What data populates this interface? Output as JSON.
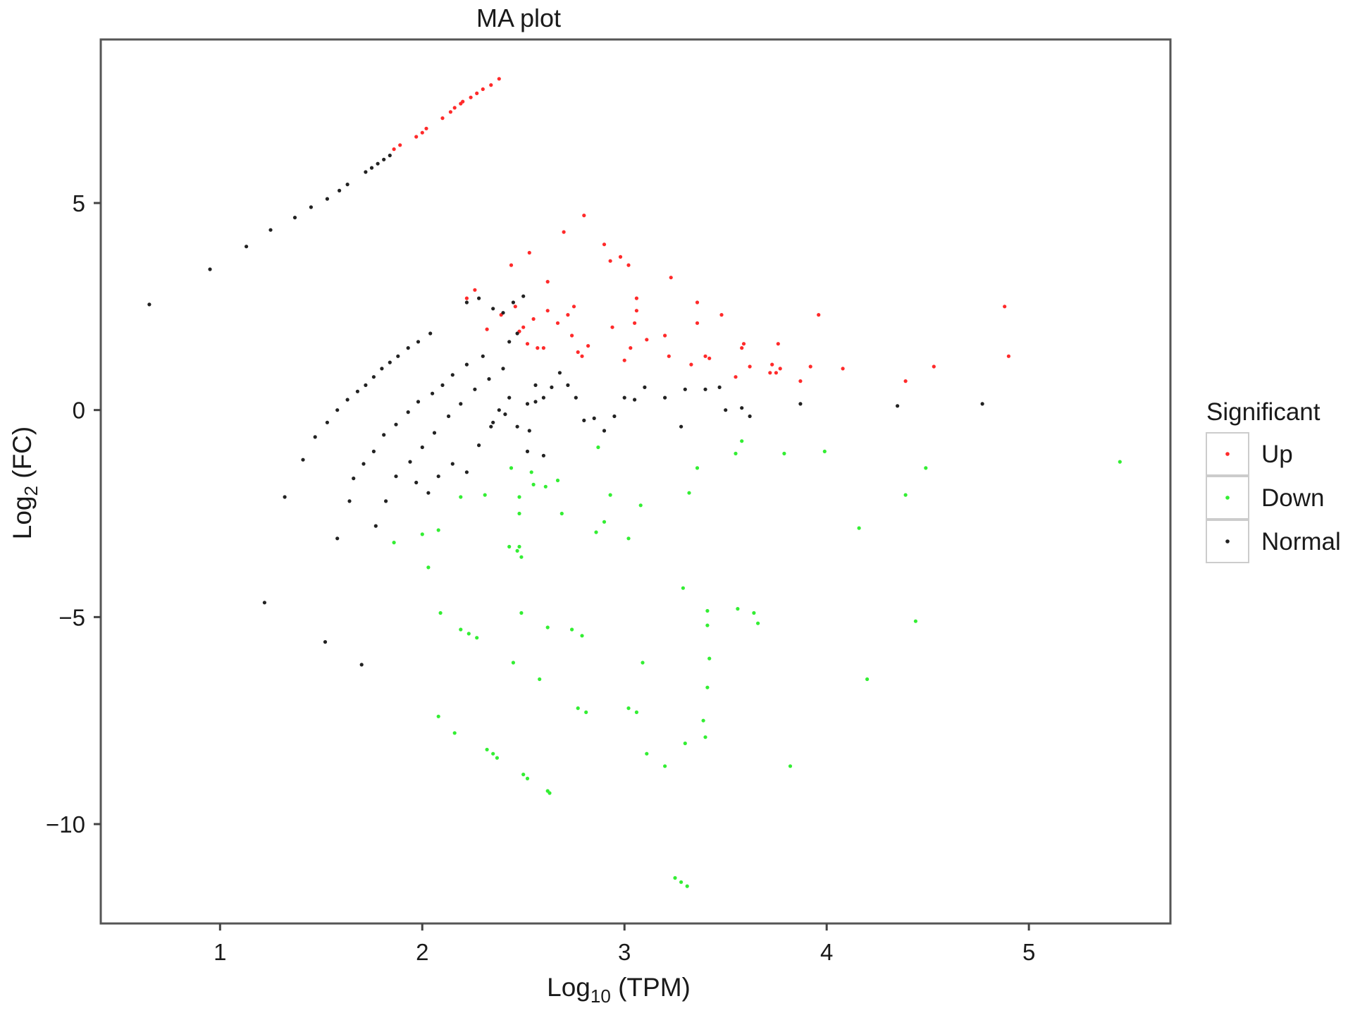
{
  "chart_data": {
    "type": "scatter",
    "title": "MA plot",
    "xlabel": {
      "base": "Log",
      "sub": "10",
      "rest": " (TPM)"
    },
    "ylabel": {
      "base": "Log",
      "sub": "2",
      "rest": " (FC)"
    },
    "xlim": [
      0.41,
      5.7
    ],
    "ylim": [
      -12.4,
      8.95
    ],
    "xticks": [
      1,
      2,
      3,
      4,
      5
    ],
    "yticks": [
      5,
      0,
      -5,
      -10
    ],
    "xtick_labels": [
      "1",
      "2",
      "3",
      "4",
      "5"
    ],
    "ytick_labels": [
      "5",
      "0",
      "−5",
      "−10"
    ],
    "grid": false,
    "legend": {
      "title": "Significant",
      "position": "right",
      "entries": [
        {
          "label": "Up",
          "color": "#ff2a2a"
        },
        {
          "label": "Down",
          "color": "#33ee33"
        },
        {
          "label": "Normal",
          "color": "#222222"
        }
      ]
    },
    "series": [
      {
        "name": "Up",
        "color": "#ff2a2a",
        "points": [
          [
            1.86,
            6.3
          ],
          [
            1.89,
            6.4
          ],
          [
            1.97,
            6.6
          ],
          [
            2.0,
            6.7
          ],
          [
            2.02,
            6.8
          ],
          [
            2.1,
            7.05
          ],
          [
            2.14,
            7.2
          ],
          [
            2.16,
            7.3
          ],
          [
            2.19,
            7.4
          ],
          [
            2.2,
            7.45
          ],
          [
            2.24,
            7.55
          ],
          [
            2.27,
            7.65
          ],
          [
            2.3,
            7.75
          ],
          [
            2.34,
            7.85
          ],
          [
            2.38,
            8.0
          ],
          [
            2.22,
            2.7
          ],
          [
            2.26,
            2.9
          ],
          [
            2.32,
            1.95
          ],
          [
            2.39,
            2.3
          ],
          [
            2.44,
            3.5
          ],
          [
            2.46,
            2.5
          ],
          [
            2.48,
            1.9
          ],
          [
            2.5,
            2.0
          ],
          [
            2.52,
            1.6
          ],
          [
            2.53,
            3.8
          ],
          [
            2.55,
            2.2
          ],
          [
            2.57,
            1.5
          ],
          [
            2.6,
            1.5
          ],
          [
            2.62,
            3.1
          ],
          [
            2.62,
            2.4
          ],
          [
            2.67,
            2.1
          ],
          [
            2.7,
            4.3
          ],
          [
            2.72,
            2.3
          ],
          [
            2.74,
            1.8
          ],
          [
            2.75,
            2.5
          ],
          [
            2.77,
            1.4
          ],
          [
            2.79,
            1.3
          ],
          [
            2.8,
            4.7
          ],
          [
            2.82,
            1.55
          ],
          [
            2.9,
            4.0
          ],
          [
            2.93,
            3.6
          ],
          [
            2.94,
            2.0
          ],
          [
            2.98,
            3.7
          ],
          [
            3.0,
            1.2
          ],
          [
            3.02,
            3.5
          ],
          [
            3.03,
            1.5
          ],
          [
            3.05,
            2.1
          ],
          [
            3.06,
            2.7
          ],
          [
            3.06,
            2.4
          ],
          [
            3.11,
            1.7
          ],
          [
            3.2,
            1.8
          ],
          [
            3.22,
            1.3
          ],
          [
            3.23,
            3.2
          ],
          [
            3.33,
            1.1
          ],
          [
            3.36,
            2.1
          ],
          [
            3.36,
            2.6
          ],
          [
            3.4,
            1.3
          ],
          [
            3.42,
            1.25
          ],
          [
            3.48,
            2.3
          ],
          [
            3.55,
            0.8
          ],
          [
            3.58,
            1.5
          ],
          [
            3.59,
            1.6
          ],
          [
            3.62,
            1.05
          ],
          [
            3.72,
            0.9
          ],
          [
            3.73,
            1.1
          ],
          [
            3.75,
            0.9
          ],
          [
            3.76,
            1.6
          ],
          [
            3.77,
            1.0
          ],
          [
            3.87,
            0.7
          ],
          [
            3.92,
            1.05
          ],
          [
            3.96,
            2.3
          ],
          [
            4.08,
            1.0
          ],
          [
            4.39,
            0.7
          ],
          [
            4.53,
            1.05
          ],
          [
            4.88,
            2.5
          ],
          [
            4.9,
            1.3
          ]
        ]
      },
      {
        "name": "Down",
        "color": "#33ee33",
        "points": [
          [
            1.86,
            -3.2
          ],
          [
            2.0,
            -3.0
          ],
          [
            2.03,
            -3.8
          ],
          [
            2.08,
            -2.9
          ],
          [
            2.09,
            -4.9
          ],
          [
            2.08,
            -7.4
          ],
          [
            2.16,
            -7.8
          ],
          [
            2.19,
            -2.1
          ],
          [
            2.19,
            -5.3
          ],
          [
            2.23,
            -5.4
          ],
          [
            2.27,
            -5.5
          ],
          [
            2.31,
            -2.05
          ],
          [
            2.32,
            -8.2
          ],
          [
            2.35,
            -8.3
          ],
          [
            2.37,
            -8.4
          ],
          [
            2.43,
            -3.3
          ],
          [
            2.44,
            -1.4
          ],
          [
            2.45,
            -6.1
          ],
          [
            2.47,
            -3.4
          ],
          [
            2.48,
            -2.1
          ],
          [
            2.48,
            -2.5
          ],
          [
            2.48,
            -3.3
          ],
          [
            2.49,
            -4.9
          ],
          [
            2.49,
            -3.55
          ],
          [
            2.5,
            -8.8
          ],
          [
            2.52,
            -8.9
          ],
          [
            2.54,
            -1.5
          ],
          [
            2.55,
            -1.8
          ],
          [
            2.58,
            -6.5
          ],
          [
            2.61,
            -1.85
          ],
          [
            2.62,
            -5.25
          ],
          [
            2.62,
            -9.2
          ],
          [
            2.63,
            -9.25
          ],
          [
            2.67,
            -1.7
          ],
          [
            2.69,
            -2.5
          ],
          [
            2.74,
            -5.3
          ],
          [
            2.77,
            -7.2
          ],
          [
            2.79,
            -5.45
          ],
          [
            2.81,
            -7.3
          ],
          [
            2.86,
            -2.95
          ],
          [
            2.87,
            -0.9
          ],
          [
            2.9,
            -2.7
          ],
          [
            2.93,
            -2.05
          ],
          [
            3.02,
            -3.1
          ],
          [
            3.02,
            -7.2
          ],
          [
            3.06,
            -7.3
          ],
          [
            3.08,
            -2.3
          ],
          [
            3.09,
            -6.1
          ],
          [
            3.11,
            -8.3
          ],
          [
            3.2,
            -8.6
          ],
          [
            3.25,
            -11.3
          ],
          [
            3.28,
            -11.4
          ],
          [
            3.29,
            -4.3
          ],
          [
            3.31,
            -11.5
          ],
          [
            3.3,
            -8.05
          ],
          [
            3.32,
            -2.0
          ],
          [
            3.36,
            -1.4
          ],
          [
            3.39,
            -7.5
          ],
          [
            3.41,
            -4.85
          ],
          [
            3.41,
            -5.2
          ],
          [
            3.42,
            -6.0
          ],
          [
            3.41,
            -6.7
          ],
          [
            3.4,
            -7.9
          ],
          [
            3.55,
            -1.05
          ],
          [
            3.58,
            -0.75
          ],
          [
            3.56,
            -4.8
          ],
          [
            3.64,
            -4.9
          ],
          [
            3.66,
            -5.15
          ],
          [
            3.79,
            -1.05
          ],
          [
            3.82,
            -8.6
          ],
          [
            3.99,
            -1.0
          ],
          [
            4.2,
            -6.5
          ],
          [
            4.16,
            -2.85
          ],
          [
            4.39,
            -2.05
          ],
          [
            4.44,
            -5.1
          ],
          [
            4.49,
            -1.4
          ],
          [
            5.45,
            -1.25
          ]
        ]
      },
      {
        "name": "Normal",
        "color": "#222222",
        "points": [
          [
            0.65,
            2.55
          ],
          [
            0.95,
            3.4
          ],
          [
            1.13,
            3.95
          ],
          [
            1.25,
            4.35
          ],
          [
            1.37,
            4.65
          ],
          [
            1.45,
            4.9
          ],
          [
            1.53,
            5.1
          ],
          [
            1.59,
            5.3
          ],
          [
            1.63,
            5.45
          ],
          [
            1.72,
            5.75
          ],
          [
            1.75,
            5.85
          ],
          [
            1.78,
            5.95
          ],
          [
            1.81,
            6.05
          ],
          [
            1.84,
            6.15
          ],
          [
            1.47,
            -0.65
          ],
          [
            1.53,
            -0.3
          ],
          [
            1.58,
            0.0
          ],
          [
            1.63,
            0.25
          ],
          [
            1.68,
            0.45
          ],
          [
            1.72,
            0.6
          ],
          [
            1.76,
            0.8
          ],
          [
            1.8,
            1.0
          ],
          [
            1.84,
            1.15
          ],
          [
            1.88,
            1.3
          ],
          [
            1.93,
            1.5
          ],
          [
            1.98,
            1.65
          ],
          [
            2.04,
            1.85
          ],
          [
            1.41,
            -1.2
          ],
          [
            1.66,
            -1.65
          ],
          [
            1.71,
            -1.3
          ],
          [
            1.76,
            -1.0
          ],
          [
            1.81,
            -0.6
          ],
          [
            1.87,
            -0.35
          ],
          [
            1.93,
            -0.05
          ],
          [
            1.98,
            0.2
          ],
          [
            2.05,
            0.4
          ],
          [
            2.1,
            0.6
          ],
          [
            2.15,
            0.85
          ],
          [
            2.22,
            1.1
          ],
          [
            2.3,
            1.3
          ],
          [
            1.77,
            -2.8
          ],
          [
            1.82,
            -2.2
          ],
          [
            1.87,
            -1.6
          ],
          [
            1.94,
            -1.25
          ],
          [
            2.0,
            -0.9
          ],
          [
            2.06,
            -0.55
          ],
          [
            2.13,
            -0.15
          ],
          [
            2.19,
            0.15
          ],
          [
            2.26,
            0.5
          ],
          [
            2.33,
            0.75
          ],
          [
            2.4,
            1.0
          ],
          [
            1.97,
            -1.75
          ],
          [
            2.03,
            -2.0
          ],
          [
            2.08,
            -1.6
          ],
          [
            2.15,
            -1.3
          ],
          [
            2.22,
            -1.5
          ],
          [
            2.28,
            -0.85
          ],
          [
            2.34,
            -0.4
          ],
          [
            2.41,
            -0.1
          ],
          [
            2.43,
            1.65
          ],
          [
            2.47,
            1.85
          ],
          [
            2.52,
            0.15
          ],
          [
            2.56,
            0.6
          ],
          [
            2.6,
            0.3
          ],
          [
            2.64,
            0.55
          ],
          [
            2.68,
            0.9
          ],
          [
            2.72,
            0.6
          ],
          [
            2.76,
            0.3
          ],
          [
            2.8,
            -0.25
          ],
          [
            2.85,
            -0.2
          ],
          [
            2.9,
            -0.5
          ],
          [
            2.95,
            -0.15
          ],
          [
            3.0,
            0.3
          ],
          [
            3.05,
            0.25
          ],
          [
            3.1,
            0.55
          ],
          [
            3.2,
            0.3
          ],
          [
            3.3,
            0.5
          ],
          [
            3.4,
            0.5
          ],
          [
            3.47,
            0.55
          ],
          [
            3.5,
            0.0
          ],
          [
            3.58,
            0.05
          ],
          [
            3.62,
            -0.15
          ],
          [
            3.28,
            -0.4
          ],
          [
            2.52,
            -1.0
          ],
          [
            2.6,
            -1.1
          ],
          [
            2.22,
            2.6
          ],
          [
            2.28,
            2.7
          ],
          [
            2.35,
            2.45
          ],
          [
            2.4,
            2.35
          ],
          [
            2.45,
            2.6
          ],
          [
            2.5,
            2.75
          ],
          [
            2.47,
            -0.4
          ],
          [
            2.53,
            -0.5
          ],
          [
            2.56,
            0.2
          ],
          [
            2.43,
            0.3
          ],
          [
            2.38,
            0.0
          ],
          [
            2.35,
            -0.3
          ],
          [
            1.32,
            -2.1
          ],
          [
            1.22,
            -4.65
          ],
          [
            1.58,
            -3.1
          ],
          [
            1.52,
            -5.6
          ],
          [
            1.7,
            -6.15
          ],
          [
            1.64,
            -2.2
          ],
          [
            3.87,
            0.15
          ],
          [
            4.35,
            0.1
          ],
          [
            4.77,
            0.15
          ]
        ]
      }
    ]
  }
}
